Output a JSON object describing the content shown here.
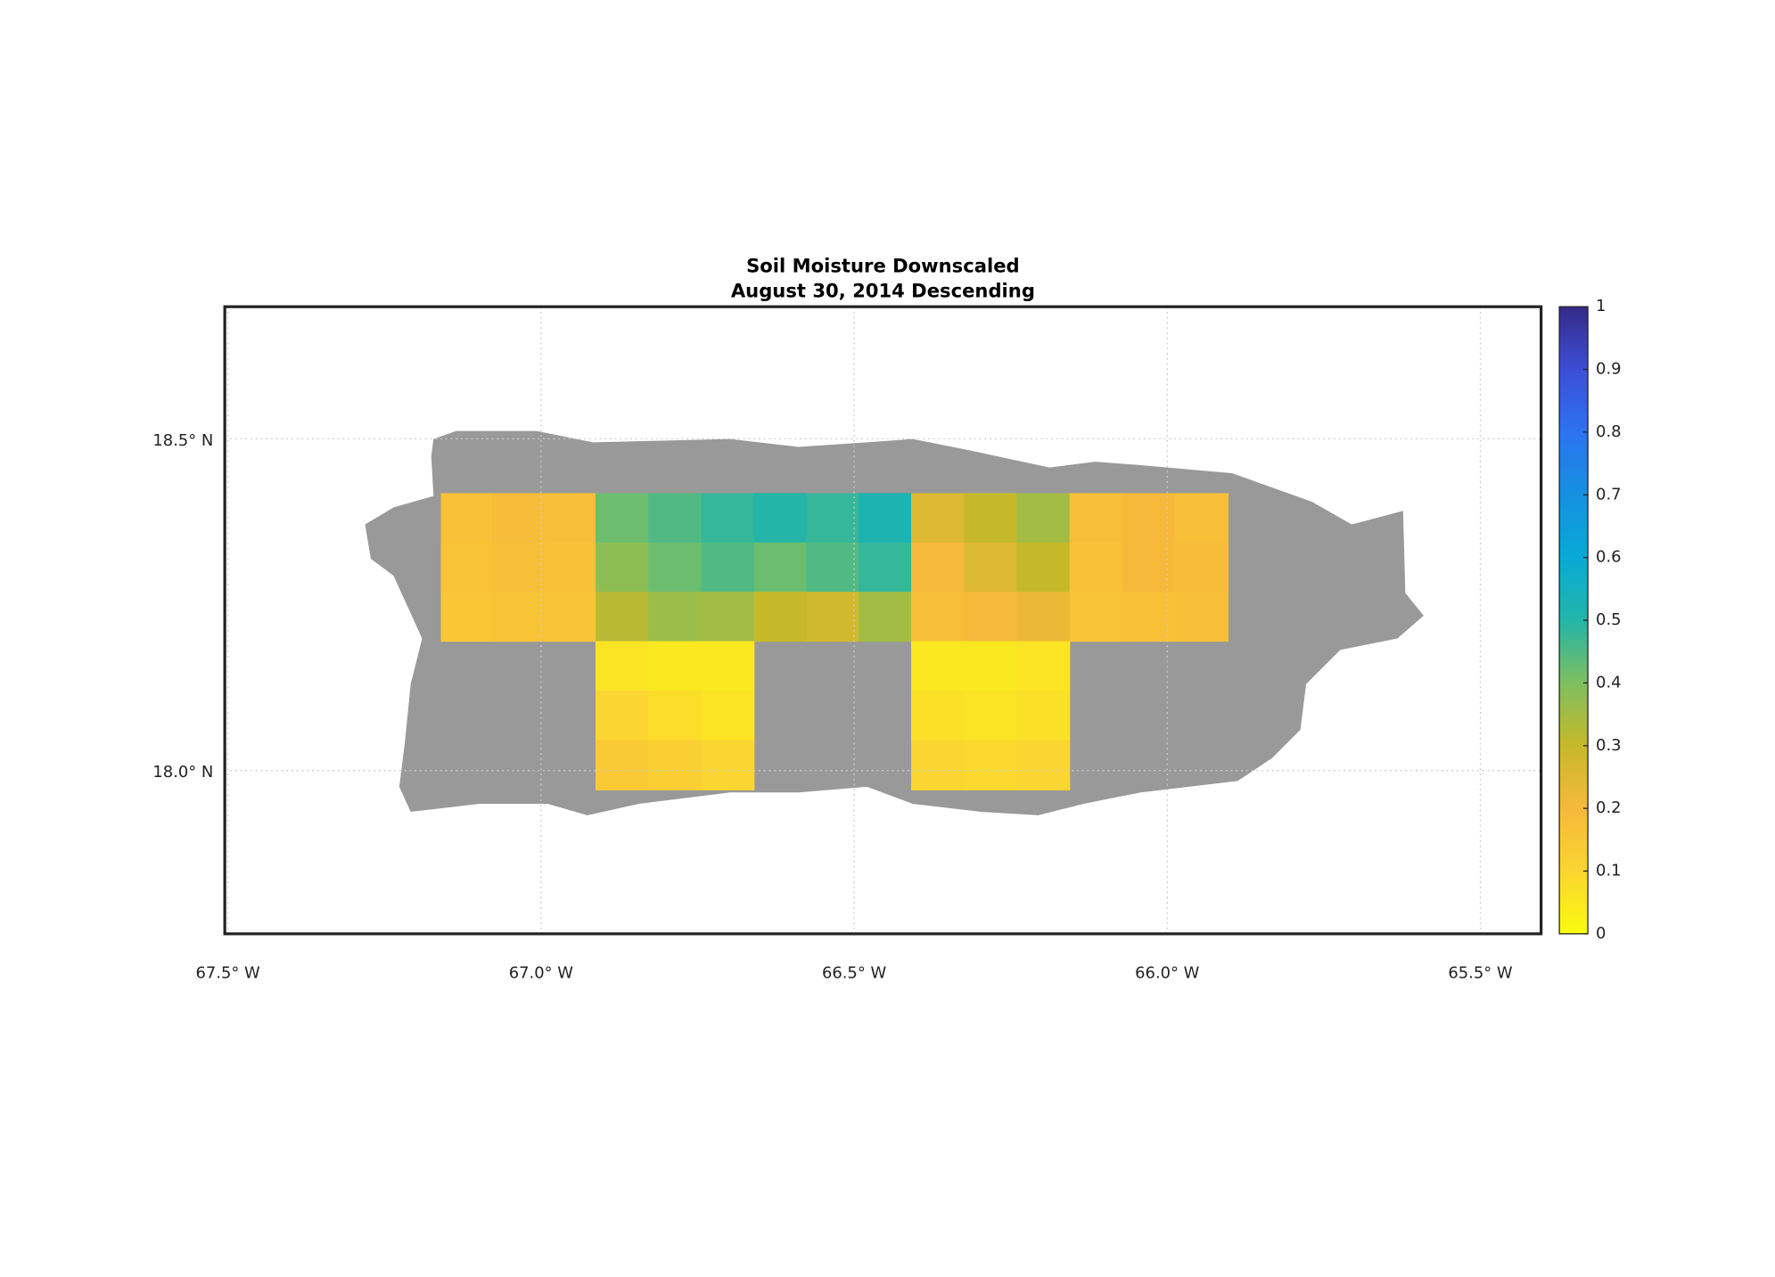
{
  "chart_data": {
    "type": "tile-map",
    "title": "Soil Moisture Downscaled",
    "subtitle": "August 30, 2014 Descending",
    "xlim": [
      -67.505,
      -65.403
    ],
    "ylim": [
      17.754,
      18.699
    ],
    "xticks": [
      {
        "value": -67.5,
        "label": "67.5° W"
      },
      {
        "value": -67.0,
        "label": "67.0° W"
      },
      {
        "value": -66.5,
        "label": "66.5° W"
      },
      {
        "value": -66.0,
        "label": "66.0° W"
      },
      {
        "value": -65.5,
        "label": "65.5° W"
      }
    ],
    "yticks": [
      {
        "value": 18.0,
        "label": "18.0° N"
      },
      {
        "value": 18.5,
        "label": "18.5° N"
      }
    ],
    "grid": true,
    "clim": [
      0,
      1
    ],
    "cticks": [
      0,
      0.1,
      0.2,
      0.3,
      0.4,
      0.5,
      0.6,
      0.7,
      0.8,
      0.9,
      1
    ],
    "colormap": [
      "#f9fb0e",
      "#fbd531",
      "#f6b93a",
      "#c6b929",
      "#7fbf5f",
      "#22b5a8",
      "#08aad6",
      "#1590e0",
      "#2c73f0",
      "#3c4ed6",
      "#352a87"
    ],
    "land_color": "#999999",
    "tiles": [
      {
        "lon": [
          -67.16,
          -66.913
        ],
        "lat": [
          18.195,
          18.418
        ],
        "values": [
          [
            0.17,
            0.19,
            0.18
          ],
          [
            0.16,
            0.18,
            0.17
          ],
          [
            0.15,
            0.16,
            0.16
          ]
        ]
      },
      {
        "lon": [
          -66.913,
          -66.66
        ],
        "lat": [
          18.195,
          18.418
        ],
        "values": [
          [
            0.42,
            0.45,
            0.48
          ],
          [
            0.38,
            0.42,
            0.45
          ],
          [
            0.32,
            0.36,
            0.35
          ]
        ]
      },
      {
        "lon": [
          -66.66,
          -66.409
        ],
        "lat": [
          18.195,
          18.418
        ],
        "values": [
          [
            0.5,
            0.48,
            0.52
          ],
          [
            0.42,
            0.45,
            0.48
          ],
          [
            0.3,
            0.28,
            0.35
          ]
        ]
      },
      {
        "lon": [
          -66.409,
          -66.156
        ],
        "lat": [
          18.195,
          18.418
        ],
        "values": [
          [
            0.25,
            0.3,
            0.35
          ],
          [
            0.2,
            0.25,
            0.3
          ],
          [
            0.18,
            0.2,
            0.22
          ]
        ]
      },
      {
        "lon": [
          -66.156,
          -65.903
        ],
        "lat": [
          18.195,
          18.418
        ],
        "values": [
          [
            0.18,
            0.2,
            0.18
          ],
          [
            0.17,
            0.2,
            0.19
          ],
          [
            0.16,
            0.17,
            0.18
          ]
        ]
      },
      {
        "lon": [
          -66.913,
          -66.66
        ],
        "lat": [
          17.971,
          18.195
        ],
        "values": [
          [
            0.06,
            0.05,
            0.05
          ],
          [
            0.1,
            0.08,
            0.06
          ],
          [
            0.14,
            0.12,
            0.1
          ]
        ]
      },
      {
        "lon": [
          -66.409,
          -66.156
        ],
        "lat": [
          17.971,
          18.195
        ],
        "values": [
          [
            0.05,
            0.05,
            0.06
          ],
          [
            0.07,
            0.06,
            0.07
          ],
          [
            0.1,
            0.09,
            0.1
          ]
        ]
      }
    ]
  }
}
